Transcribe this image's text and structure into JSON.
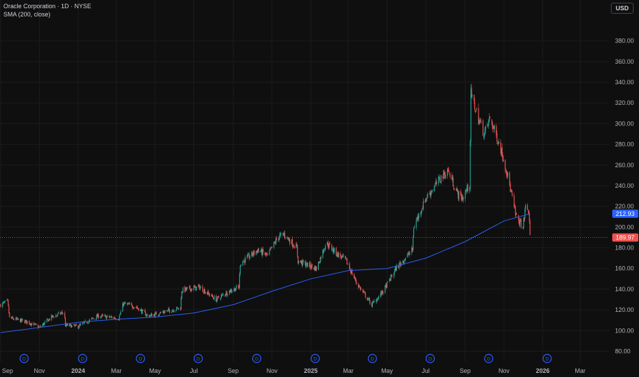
{
  "header": {
    "title": "Oracle Corporation · 1D · NYSE",
    "indicator": "SMA (200, close)",
    "currency": "USD"
  },
  "colors": {
    "background": "#0f0f0f",
    "up": "#26a69a",
    "down": "#ef5350",
    "sma": "#2962ff",
    "grid": "#1c1c1c",
    "axis_text": "#b2b5be"
  },
  "chart_data": {
    "type": "candlestick",
    "title": "Oracle Corporation · 1D · NYSE",
    "ylim": [
      75,
      395
    ],
    "y_ticks": [
      80,
      100,
      120,
      140,
      160,
      180,
      200,
      220,
      240,
      260,
      280,
      300,
      320,
      340,
      360,
      380
    ],
    "x_ticks": [
      "Sep",
      "Nov",
      "2024",
      "Mar",
      "May",
      "Jul",
      "Sep",
      "Nov",
      "2025",
      "Mar",
      "May",
      "Jul",
      "Sep",
      "Nov",
      "2026",
      "Mar"
    ],
    "x_tick_dates": [
      "2023-09-01",
      "2023-11-01",
      "2024-01-01",
      "2024-03-01",
      "2024-05-01",
      "2024-07-01",
      "2024-09-01",
      "2024-11-01",
      "2025-01-01",
      "2025-03-01",
      "2025-05-01",
      "2025-07-01",
      "2025-09-01",
      "2025-11-01",
      "2026-01-01",
      "2026-03-01"
    ],
    "xlim": [
      "2023-08-31",
      "2026-04-15"
    ],
    "price_path": [
      {
        "date": "2023-09-01",
        "close": 125
      },
      {
        "date": "2023-09-12",
        "close": 128
      },
      {
        "date": "2023-09-15",
        "close": 112
      },
      {
        "date": "2023-10-15",
        "close": 108
      },
      {
        "date": "2023-11-01",
        "close": 103
      },
      {
        "date": "2023-11-20",
        "close": 113
      },
      {
        "date": "2023-12-10",
        "close": 118
      },
      {
        "date": "2023-12-12",
        "close": 105
      },
      {
        "date": "2024-01-01",
        "close": 104
      },
      {
        "date": "2024-02-01",
        "close": 114
      },
      {
        "date": "2024-03-05",
        "close": 112
      },
      {
        "date": "2024-03-12",
        "close": 126
      },
      {
        "date": "2024-04-01",
        "close": 123
      },
      {
        "date": "2024-04-20",
        "close": 114
      },
      {
        "date": "2024-05-15",
        "close": 118
      },
      {
        "date": "2024-06-10",
        "close": 122
      },
      {
        "date": "2024-06-12",
        "close": 139
      },
      {
        "date": "2024-07-10",
        "close": 142
      },
      {
        "date": "2024-08-05",
        "close": 130
      },
      {
        "date": "2024-08-25",
        "close": 138
      },
      {
        "date": "2024-09-10",
        "close": 142
      },
      {
        "date": "2024-09-12",
        "close": 165
      },
      {
        "date": "2024-10-10",
        "close": 178
      },
      {
        "date": "2024-10-25",
        "close": 172
      },
      {
        "date": "2024-11-10",
        "close": 190
      },
      {
        "date": "2024-11-20",
        "close": 193
      },
      {
        "date": "2024-12-10",
        "close": 180
      },
      {
        "date": "2024-12-12",
        "close": 167
      },
      {
        "date": "2025-01-10",
        "close": 160
      },
      {
        "date": "2025-01-25",
        "close": 185
      },
      {
        "date": "2025-02-10",
        "close": 175
      },
      {
        "date": "2025-02-25",
        "close": 168
      },
      {
        "date": "2025-03-15",
        "close": 145
      },
      {
        "date": "2025-04-07",
        "close": 125
      },
      {
        "date": "2025-04-25",
        "close": 138
      },
      {
        "date": "2025-05-15",
        "close": 160
      },
      {
        "date": "2025-06-10",
        "close": 178
      },
      {
        "date": "2025-06-12",
        "close": 200
      },
      {
        "date": "2025-07-01",
        "close": 228
      },
      {
        "date": "2025-07-25",
        "close": 248
      },
      {
        "date": "2025-08-05",
        "close": 255
      },
      {
        "date": "2025-08-20",
        "close": 232
      },
      {
        "date": "2025-08-28",
        "close": 228
      },
      {
        "date": "2025-09-08",
        "close": 242
      },
      {
        "date": "2025-09-10",
        "close": 328
      },
      {
        "date": "2025-09-22",
        "close": 305
      },
      {
        "date": "2025-10-01",
        "close": 290
      },
      {
        "date": "2025-10-10",
        "close": 305
      },
      {
        "date": "2025-10-25",
        "close": 280
      },
      {
        "date": "2025-11-05",
        "close": 255
      },
      {
        "date": "2025-11-20",
        "close": 210
      },
      {
        "date": "2025-12-01",
        "close": 200
      },
      {
        "date": "2025-12-05",
        "close": 220
      },
      {
        "date": "2025-12-10",
        "close": 215
      },
      {
        "date": "2025-12-12",
        "close": 190
      }
    ],
    "sma200": [
      {
        "date": "2023-09-01",
        "value": 98
      },
      {
        "date": "2023-11-01",
        "value": 103
      },
      {
        "date": "2024-01-01",
        "value": 108
      },
      {
        "date": "2024-03-01",
        "value": 111
      },
      {
        "date": "2024-05-01",
        "value": 113
      },
      {
        "date": "2024-07-01",
        "value": 117
      },
      {
        "date": "2024-09-01",
        "value": 125
      },
      {
        "date": "2024-11-01",
        "value": 138
      },
      {
        "date": "2025-01-01",
        "value": 150
      },
      {
        "date": "2025-03-01",
        "value": 158
      },
      {
        "date": "2025-05-01",
        "value": 160
      },
      {
        "date": "2025-07-01",
        "value": 170
      },
      {
        "date": "2025-09-01",
        "value": 186
      },
      {
        "date": "2025-11-01",
        "value": 206
      },
      {
        "date": "2025-12-12",
        "value": 212.93
      }
    ],
    "last_price": 189.97,
    "last_price_label": "189.97",
    "sma_last": 212.93,
    "sma_last_label": "212.93",
    "dividend_marker_label": "D",
    "dividend_dates": [
      "2023-10-08",
      "2024-01-08",
      "2024-04-08",
      "2024-07-08",
      "2024-10-08",
      "2025-01-08",
      "2025-04-08",
      "2025-07-08",
      "2025-10-08",
      "2026-01-08"
    ]
  }
}
